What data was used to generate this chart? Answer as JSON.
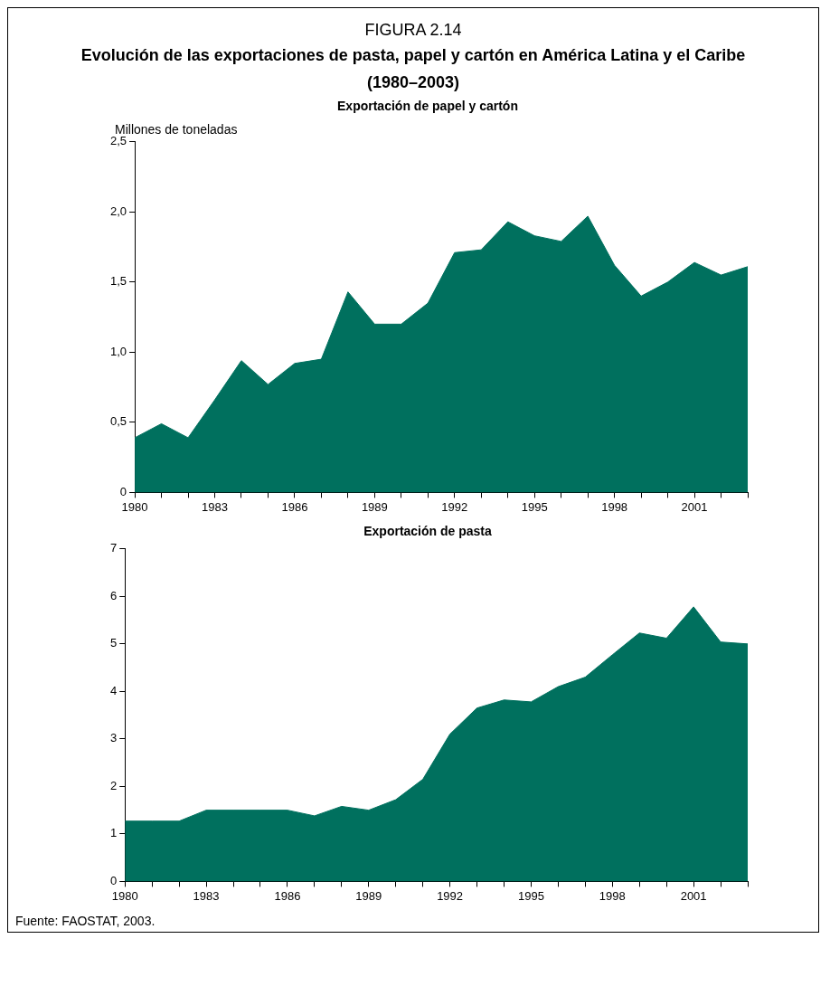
{
  "chart_data": [
    {
      "type": "other",
      "title": "FIGURA 2.14",
      "subtitle": "Evolución de las exportaciones de pasta, papel y cartón en América Latina y el Caribe (1980–2003)"
    },
    {
      "type": "area",
      "title": "Exportación de papel y cartón",
      "ylabel": "Millones de toneladas",
      "categories": [
        "1980",
        null,
        null,
        "1983",
        null,
        null,
        "1986",
        null,
        null,
        "1989",
        null,
        null,
        "1992",
        null,
        null,
        "1995",
        null,
        null,
        "1998",
        null,
        null,
        "2001",
        null,
        null
      ],
      "values": [
        0.39,
        0.49,
        0.39,
        0.66,
        0.94,
        0.77,
        0.92,
        0.95,
        1.43,
        1.2,
        1.2,
        1.35,
        1.71,
        1.73,
        1.93,
        1.83,
        1.79,
        1.97,
        1.62,
        1.4,
        1.5,
        1.64,
        1.55,
        1.61
      ],
      "color": "#00705e",
      "ylim": [
        0,
        2.5
      ],
      "yticks": [
        0,
        {
          "value": 0.5,
          "label": "0,5"
        },
        {
          "value": 1,
          "label": "1,0"
        },
        {
          "value": 1.5,
          "label": "1,5"
        },
        {
          "value": 2,
          "label": "2,0"
        },
        {
          "value": 2.5,
          "label": "2,5"
        }
      ],
      "grid": false
    },
    {
      "type": "area",
      "title": "Exportación de pasta",
      "categories": [
        "1980",
        null,
        null,
        "1983",
        null,
        null,
        "1986",
        null,
        null,
        "1989",
        null,
        null,
        "1992",
        null,
        null,
        "1995",
        null,
        null,
        "1998",
        null,
        null,
        "2001",
        null,
        null
      ],
      "values": [
        1.27,
        1.27,
        1.27,
        1.5,
        1.5,
        1.5,
        1.5,
        1.38,
        1.58,
        1.5,
        1.72,
        2.15,
        3.1,
        3.65,
        3.82,
        3.78,
        4.1,
        4.3,
        4.77,
        5.23,
        5.12,
        5.78,
        5.04,
        5.0
      ],
      "color": "#00705e",
      "ylim": [
        0,
        7
      ],
      "yticks": [
        0,
        1,
        2,
        3,
        4,
        5,
        6,
        7
      ],
      "grid": false,
      "annotations": [
        "Fuente: FAOSTAT, 2003."
      ]
    }
  ]
}
